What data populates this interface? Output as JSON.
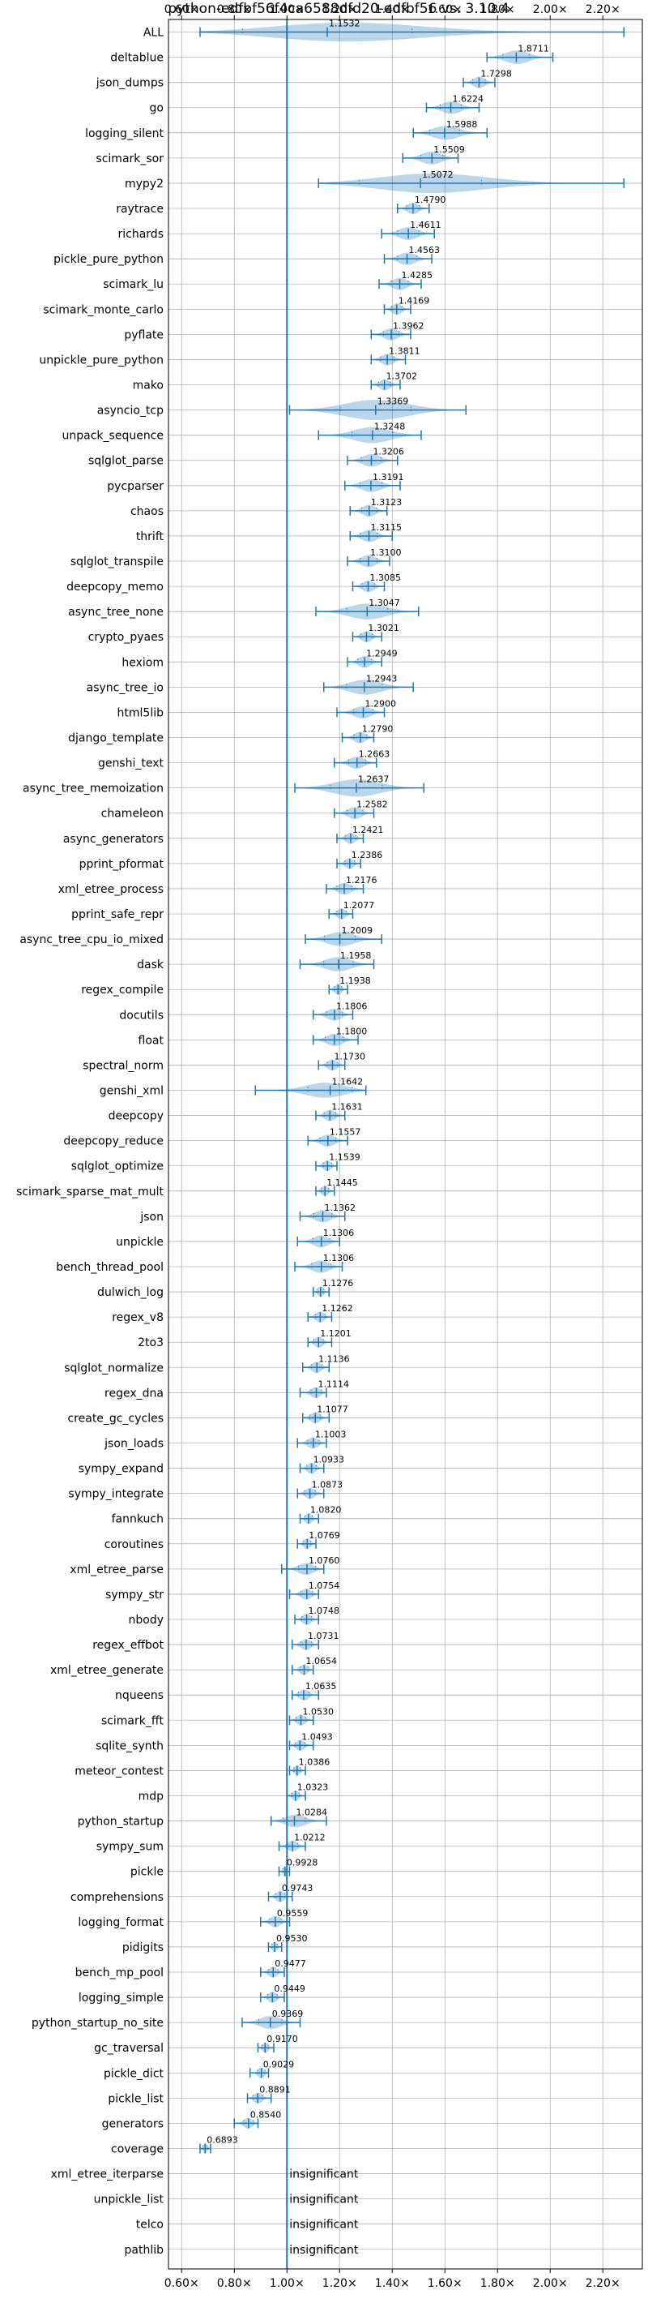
{
  "chart_data": {
    "type": "violin",
    "title": "python-edfbf56f4ca6588dfd20-edfbf56 vs. 3.10.4",
    "xlim": [
      0.55,
      2.35
    ],
    "xticks": [
      "0.60×",
      "0.80×",
      "1.00×",
      "1.20×",
      "1.40×",
      "1.60×",
      "1.80×",
      "2.00×",
      "2.20×"
    ],
    "xtick_values": [
      0.6,
      0.8,
      1.0,
      1.2,
      1.4,
      1.6,
      1.8,
      2.0,
      2.2
    ],
    "reference_line": 1.0,
    "grid": true,
    "insignificant_label": "insignificant",
    "benchmarks": [
      {
        "name": "ALL",
        "value": 1.1532,
        "label": "1.1532",
        "min": 0.67,
        "max": 2.28
      },
      {
        "name": "deltablue",
        "value": 1.8711,
        "label": "1.8711",
        "min": 1.76,
        "max": 2.01
      },
      {
        "name": "json_dumps",
        "value": 1.7298,
        "label": "1.7298",
        "min": 1.67,
        "max": 1.79
      },
      {
        "name": "go",
        "value": 1.6224,
        "label": "1.6224",
        "min": 1.53,
        "max": 1.73
      },
      {
        "name": "logging_silent",
        "value": 1.5988,
        "label": "1.5988",
        "min": 1.48,
        "max": 1.76
      },
      {
        "name": "scimark_sor",
        "value": 1.5509,
        "label": "1.5509",
        "min": 1.44,
        "max": 1.65
      },
      {
        "name": "mypy2",
        "value": 1.5072,
        "label": "1.5072",
        "min": 1.12,
        "max": 2.28
      },
      {
        "name": "raytrace",
        "value": 1.479,
        "label": "1.4790",
        "min": 1.42,
        "max": 1.54
      },
      {
        "name": "richards",
        "value": 1.4611,
        "label": "1.4611",
        "min": 1.36,
        "max": 1.56
      },
      {
        "name": "pickle_pure_python",
        "value": 1.4563,
        "label": "1.4563",
        "min": 1.37,
        "max": 1.55
      },
      {
        "name": "scimark_lu",
        "value": 1.4285,
        "label": "1.4285",
        "min": 1.35,
        "max": 1.51
      },
      {
        "name": "scimark_monte_carlo",
        "value": 1.4169,
        "label": "1.4169",
        "min": 1.37,
        "max": 1.47
      },
      {
        "name": "pyflate",
        "value": 1.3962,
        "label": "1.3962",
        "min": 1.32,
        "max": 1.47
      },
      {
        "name": "unpickle_pure_python",
        "value": 1.3811,
        "label": "1.3811",
        "min": 1.32,
        "max": 1.45
      },
      {
        "name": "mako",
        "value": 1.3702,
        "label": "1.3702",
        "min": 1.32,
        "max": 1.43
      },
      {
        "name": "asyncio_tcp",
        "value": 1.3369,
        "label": "1.3369",
        "min": 1.01,
        "max": 1.68
      },
      {
        "name": "unpack_sequence",
        "value": 1.3248,
        "label": "1.3248",
        "min": 1.12,
        "max": 1.51
      },
      {
        "name": "sqlglot_parse",
        "value": 1.3206,
        "label": "1.3206",
        "min": 1.23,
        "max": 1.42
      },
      {
        "name": "pycparser",
        "value": 1.3191,
        "label": "1.3191",
        "min": 1.22,
        "max": 1.43
      },
      {
        "name": "chaos",
        "value": 1.3123,
        "label": "1.3123",
        "min": 1.24,
        "max": 1.38
      },
      {
        "name": "thrift",
        "value": 1.3115,
        "label": "1.3115",
        "min": 1.24,
        "max": 1.4
      },
      {
        "name": "sqlglot_transpile",
        "value": 1.31,
        "label": "1.3100",
        "min": 1.23,
        "max": 1.39
      },
      {
        "name": "deepcopy_memo",
        "value": 1.3085,
        "label": "1.3085",
        "min": 1.25,
        "max": 1.37
      },
      {
        "name": "async_tree_none",
        "value": 1.3047,
        "label": "1.3047",
        "min": 1.11,
        "max": 1.5
      },
      {
        "name": "crypto_pyaes",
        "value": 1.3021,
        "label": "1.3021",
        "min": 1.25,
        "max": 1.36
      },
      {
        "name": "hexiom",
        "value": 1.2949,
        "label": "1.2949",
        "min": 1.23,
        "max": 1.36
      },
      {
        "name": "async_tree_io",
        "value": 1.2943,
        "label": "1.2943",
        "min": 1.14,
        "max": 1.48
      },
      {
        "name": "html5lib",
        "value": 1.29,
        "label": "1.2900",
        "min": 1.19,
        "max": 1.37
      },
      {
        "name": "django_template",
        "value": 1.279,
        "label": "1.2790",
        "min": 1.21,
        "max": 1.33
      },
      {
        "name": "genshi_text",
        "value": 1.2663,
        "label": "1.2663",
        "min": 1.18,
        "max": 1.34
      },
      {
        "name": "async_tree_memoization",
        "value": 1.2637,
        "label": "1.2637",
        "min": 1.03,
        "max": 1.52
      },
      {
        "name": "chameleon",
        "value": 1.2582,
        "label": "1.2582",
        "min": 1.18,
        "max": 1.33
      },
      {
        "name": "async_generators",
        "value": 1.2421,
        "label": "1.2421",
        "min": 1.19,
        "max": 1.29
      },
      {
        "name": "pprint_pformat",
        "value": 1.2386,
        "label": "1.2386",
        "min": 1.19,
        "max": 1.28
      },
      {
        "name": "xml_etree_process",
        "value": 1.2176,
        "label": "1.2176",
        "min": 1.15,
        "max": 1.29
      },
      {
        "name": "pprint_safe_repr",
        "value": 1.2077,
        "label": "1.2077",
        "min": 1.16,
        "max": 1.25
      },
      {
        "name": "async_tree_cpu_io_mixed",
        "value": 1.2009,
        "label": "1.2009",
        "min": 1.07,
        "max": 1.36
      },
      {
        "name": "dask",
        "value": 1.1958,
        "label": "1.1958",
        "min": 1.05,
        "max": 1.33
      },
      {
        "name": "regex_compile",
        "value": 1.1938,
        "label": "1.1938",
        "min": 1.16,
        "max": 1.23
      },
      {
        "name": "docutils",
        "value": 1.1806,
        "label": "1.1806",
        "min": 1.1,
        "max": 1.25
      },
      {
        "name": "float",
        "value": 1.18,
        "label": "1.1800",
        "min": 1.1,
        "max": 1.27
      },
      {
        "name": "spectral_norm",
        "value": 1.173,
        "label": "1.1730",
        "min": 1.12,
        "max": 1.22
      },
      {
        "name": "genshi_xml",
        "value": 1.1642,
        "label": "1.1642",
        "min": 0.88,
        "max": 1.3
      },
      {
        "name": "deepcopy",
        "value": 1.1631,
        "label": "1.1631",
        "min": 1.11,
        "max": 1.22
      },
      {
        "name": "deepcopy_reduce",
        "value": 1.1557,
        "label": "1.1557",
        "min": 1.08,
        "max": 1.23
      },
      {
        "name": "sqlglot_optimize",
        "value": 1.1539,
        "label": "1.1539",
        "min": 1.11,
        "max": 1.19
      },
      {
        "name": "scimark_sparse_mat_mult",
        "value": 1.1445,
        "label": "1.1445",
        "min": 1.11,
        "max": 1.18
      },
      {
        "name": "json",
        "value": 1.1362,
        "label": "1.1362",
        "min": 1.05,
        "max": 1.22
      },
      {
        "name": "unpickle",
        "value": 1.1306,
        "label": "1.1306",
        "min": 1.04,
        "max": 1.2
      },
      {
        "name": "bench_thread_pool",
        "value": 1.1306,
        "label": "1.1306",
        "min": 1.03,
        "max": 1.21
      },
      {
        "name": "dulwich_log",
        "value": 1.1276,
        "label": "1.1276",
        "min": 1.1,
        "max": 1.16
      },
      {
        "name": "regex_v8",
        "value": 1.1262,
        "label": "1.1262",
        "min": 1.08,
        "max": 1.17
      },
      {
        "name": "2to3",
        "value": 1.1201,
        "label": "1.1201",
        "min": 1.08,
        "max": 1.17
      },
      {
        "name": "sqlglot_normalize",
        "value": 1.1136,
        "label": "1.1136",
        "min": 1.06,
        "max": 1.16
      },
      {
        "name": "regex_dna",
        "value": 1.1114,
        "label": "1.1114",
        "min": 1.05,
        "max": 1.15
      },
      {
        "name": "create_gc_cycles",
        "value": 1.1077,
        "label": "1.1077",
        "min": 1.06,
        "max": 1.16
      },
      {
        "name": "json_loads",
        "value": 1.1003,
        "label": "1.1003",
        "min": 1.04,
        "max": 1.15
      },
      {
        "name": "sympy_expand",
        "value": 1.0933,
        "label": "1.0933",
        "min": 1.05,
        "max": 1.14
      },
      {
        "name": "sympy_integrate",
        "value": 1.0873,
        "label": "1.0873",
        "min": 1.04,
        "max": 1.14
      },
      {
        "name": "fannkuch",
        "value": 1.082,
        "label": "1.0820",
        "min": 1.05,
        "max": 1.12
      },
      {
        "name": "coroutines",
        "value": 1.0769,
        "label": "1.0769",
        "min": 1.04,
        "max": 1.11
      },
      {
        "name": "xml_etree_parse",
        "value": 1.076,
        "label": "1.0760",
        "min": 0.98,
        "max": 1.14
      },
      {
        "name": "sympy_str",
        "value": 1.0754,
        "label": "1.0754",
        "min": 1.01,
        "max": 1.12
      },
      {
        "name": "nbody",
        "value": 1.0748,
        "label": "1.0748",
        "min": 1.03,
        "max": 1.12
      },
      {
        "name": "regex_effbot",
        "value": 1.0731,
        "label": "1.0731",
        "min": 1.02,
        "max": 1.12
      },
      {
        "name": "xml_etree_generate",
        "value": 1.0654,
        "label": "1.0654",
        "min": 1.02,
        "max": 1.1
      },
      {
        "name": "nqueens",
        "value": 1.0635,
        "label": "1.0635",
        "min": 1.02,
        "max": 1.12
      },
      {
        "name": "scimark_fft",
        "value": 1.053,
        "label": "1.0530",
        "min": 1.01,
        "max": 1.1
      },
      {
        "name": "sqlite_synth",
        "value": 1.0493,
        "label": "1.0493",
        "min": 1.01,
        "max": 1.1
      },
      {
        "name": "meteor_contest",
        "value": 1.0386,
        "label": "1.0386",
        "min": 1.01,
        "max": 1.07
      },
      {
        "name": "mdp",
        "value": 1.0323,
        "label": "1.0323",
        "min": 1.0,
        "max": 1.07
      },
      {
        "name": "python_startup",
        "value": 1.0284,
        "label": "1.0284",
        "min": 0.94,
        "max": 1.15
      },
      {
        "name": "sympy_sum",
        "value": 1.0212,
        "label": "1.0212",
        "min": 0.97,
        "max": 1.07
      },
      {
        "name": "pickle",
        "value": 0.9928,
        "label": "0.9928",
        "min": 0.97,
        "max": 1.01
      },
      {
        "name": "comprehensions",
        "value": 0.9743,
        "label": "0.9743",
        "min": 0.93,
        "max": 1.02
      },
      {
        "name": "logging_format",
        "value": 0.9559,
        "label": "0.9559",
        "min": 0.9,
        "max": 1.01
      },
      {
        "name": "pidigits",
        "value": 0.953,
        "label": "0.9530",
        "min": 0.93,
        "max": 0.98
      },
      {
        "name": "bench_mp_pool",
        "value": 0.9477,
        "label": "0.9477",
        "min": 0.9,
        "max": 0.99
      },
      {
        "name": "logging_simple",
        "value": 0.9449,
        "label": "0.9449",
        "min": 0.9,
        "max": 0.99
      },
      {
        "name": "python_startup_no_site",
        "value": 0.9369,
        "label": "0.9369",
        "min": 0.83,
        "max": 1.05
      },
      {
        "name": "gc_traversal",
        "value": 0.917,
        "label": "0.9170",
        "min": 0.89,
        "max": 0.95
      },
      {
        "name": "pickle_dict",
        "value": 0.9029,
        "label": "0.9029",
        "min": 0.86,
        "max": 0.93
      },
      {
        "name": "pickle_list",
        "value": 0.8891,
        "label": "0.8891",
        "min": 0.85,
        "max": 0.94
      },
      {
        "name": "generators",
        "value": 0.854,
        "label": "0.8540",
        "min": 0.8,
        "max": 0.89
      },
      {
        "name": "coverage",
        "value": 0.6893,
        "label": "0.6893",
        "min": 0.67,
        "max": 0.71
      },
      {
        "name": "xml_etree_iterparse",
        "value": null,
        "label": null,
        "insignificant": true
      },
      {
        "name": "unpickle_list",
        "value": null,
        "label": null,
        "insignificant": true
      },
      {
        "name": "telco",
        "value": null,
        "label": null,
        "insignificant": true
      },
      {
        "name": "pathlib",
        "value": null,
        "label": null,
        "insignificant": true
      }
    ]
  }
}
